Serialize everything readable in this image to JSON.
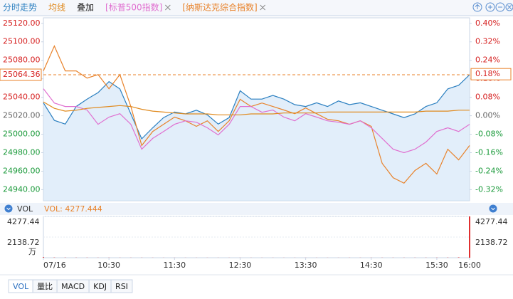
{
  "tabs_extra": "叠加",
  "indicator_tabs": [
    "VOL",
    "量比",
    "MACD",
    "KDJ",
    "RSI"
  ],
  "chart_data": [
    {
      "type": "line",
      "xlim": [
        0,
        390
      ],
      "xticks": [
        {
          "value": 0,
          "label": "07/16"
        },
        {
          "value": 60,
          "label": "10:30"
        },
        {
          "value": 120,
          "label": "11:30"
        },
        {
          "value": 180,
          "label": "12:30"
        },
        {
          "value": 240,
          "label": "13:30"
        },
        {
          "value": 300,
          "label": "14:30"
        },
        {
          "value": 360,
          "label": "15:30"
        },
        {
          "value": 390,
          "label": "16:00"
        }
      ],
      "ylim": [
        24928,
        25126
      ],
      "yticks": [
        {
          "value": 25120,
          "label": "25120.00"
        },
        {
          "value": 25100,
          "label": "25100.00"
        },
        {
          "value": 25080,
          "label": "25080.00"
        },
        {
          "value": 25060,
          "label": "25060.00"
        },
        {
          "value": 25040,
          "label": "25040.00"
        },
        {
          "value": 25020,
          "label": "25020.00"
        },
        {
          "value": 25000,
          "label": "25000.00"
        },
        {
          "value": 24980,
          "label": "24980.00"
        },
        {
          "value": 24960,
          "label": "24960.00"
        },
        {
          "value": 24940,
          "label": "24940.00"
        }
      ],
      "y2lim": [
        -0.368,
        0.424
      ],
      "y2ticks": [
        {
          "value": 0.4,
          "label": "0.40%"
        },
        {
          "value": 0.32,
          "label": "0.32%"
        },
        {
          "value": 0.24,
          "label": "0.24%"
        },
        {
          "value": 0.16,
          "label": "0.16%"
        },
        {
          "value": 0.08,
          "label": "0.08%"
        },
        {
          "value": 0,
          "label": "0.00%"
        },
        {
          "value": -0.08,
          "label": "-0.08%"
        },
        {
          "value": -0.16,
          "label": "-0.16%"
        },
        {
          "value": -0.24,
          "label": "-0.24%"
        },
        {
          "value": -0.32,
          "label": "-0.32%"
        }
      ],
      "last_price": {
        "value": 25064.36,
        "label": "25064.36"
      },
      "last_change": {
        "value": 0.18,
        "label": "0.18%"
      },
      "x": [
        0,
        10,
        20,
        30,
        40,
        50,
        60,
        70,
        80,
        90,
        100,
        110,
        120,
        130,
        140,
        150,
        160,
        170,
        180,
        190,
        200,
        210,
        220,
        230,
        240,
        250,
        260,
        270,
        280,
        290,
        300,
        310,
        320,
        330,
        340,
        350,
        360,
        370,
        380,
        390
      ],
      "series": [
        {
          "name": "分时走势",
          "color": "#2a7fc0",
          "fill": true,
          "values": [
            25034,
            25015,
            25011,
            25030,
            25038,
            25045,
            25057,
            25049,
            25022,
            24995,
            25007,
            25018,
            25024,
            25022,
            25026,
            25021,
            25011,
            25018,
            25047,
            25038,
            25038,
            25042,
            25038,
            25032,
            25030,
            25034,
            25030,
            25036,
            25032,
            25034,
            25030,
            25026,
            25022,
            25018,
            25022,
            25030,
            25034,
            25049,
            25053,
            25064.36
          ]
        },
        {
          "name": "均线",
          "color": "#e08a1e",
          "values": [
            25035,
            25028,
            25025,
            25026,
            25028,
            25029,
            25030,
            25031,
            25030,
            25027,
            25025,
            25024,
            25023,
            25022,
            25022,
            25022,
            25021,
            25021,
            25021,
            25022,
            25022,
            25022,
            25023,
            25023,
            25023,
            25023,
            25024,
            25024,
            25024,
            25024,
            25024,
            25024,
            25024,
            25024,
            25024,
            25025,
            25025,
            25025,
            25026,
            25026
          ]
        },
        {
          "name": "[标普500指数]",
          "color": "#e070d0",
          "axis": "y2",
          "values": [
            0.117,
            0.055,
            0.04,
            0.04,
            0.025,
            -0.037,
            -0.006,
            0.009,
            -0.037,
            -0.145,
            -0.098,
            -0.068,
            -0.037,
            -0.022,
            -0.028,
            -0.052,
            -0.083,
            -0.037,
            0.04,
            0.04,
            0.015,
            0.025,
            -0.006,
            -0.022,
            0.009,
            -0.006,
            -0.022,
            -0.028,
            -0.037,
            -0.022,
            -0.052,
            -0.098,
            -0.145,
            -0.16,
            -0.145,
            -0.114,
            -0.068,
            -0.052,
            -0.068,
            -0.037
          ]
        },
        {
          "name": "[纳斯达克综合指数]",
          "color": "#e8822a",
          "axis": "y2",
          "values": [
            0.194,
            0.302,
            0.194,
            0.194,
            0.163,
            0.178,
            0.117,
            0.178,
            0.04,
            -0.129,
            -0.068,
            -0.037,
            -0.006,
            -0.022,
            -0.046,
            -0.022,
            -0.068,
            -0.022,
            0.071,
            0.04,
            0.055,
            0.04,
            0.025,
            0.009,
            0.034,
            0.009,
            -0.015,
            -0.022,
            -0.037,
            -0.022,
            -0.046,
            -0.206,
            -0.268,
            -0.292,
            -0.237,
            -0.206,
            -0.252,
            -0.145,
            -0.191,
            -0.129
          ]
        }
      ]
    },
    {
      "type": "bar",
      "title": "VOL",
      "readout": "VOL: 4277.444",
      "unit": "万",
      "color": "#e03030",
      "xlim": [
        0,
        390
      ],
      "ylim": [
        0,
        4277.44
      ],
      "yticks": [
        4277.44,
        2138.72
      ],
      "x": [
        0,
        10,
        20,
        30,
        40,
        50,
        60,
        70,
        80,
        90,
        100,
        110,
        120,
        130,
        140,
        150,
        160,
        170,
        180,
        190,
        200,
        210,
        220,
        230,
        240,
        250,
        260,
        270,
        280,
        290,
        300,
        310,
        320,
        330,
        340,
        350,
        360,
        370,
        380,
        390
      ],
      "values": [
        60,
        25,
        20,
        15,
        15,
        12,
        12,
        10,
        10,
        12,
        10,
        8,
        8,
        8,
        8,
        8,
        8,
        8,
        8,
        8,
        8,
        8,
        8,
        8,
        8,
        8,
        8,
        8,
        10,
        10,
        10,
        12,
        12,
        12,
        12,
        14,
        16,
        20,
        40,
        4277.444
      ]
    }
  ]
}
